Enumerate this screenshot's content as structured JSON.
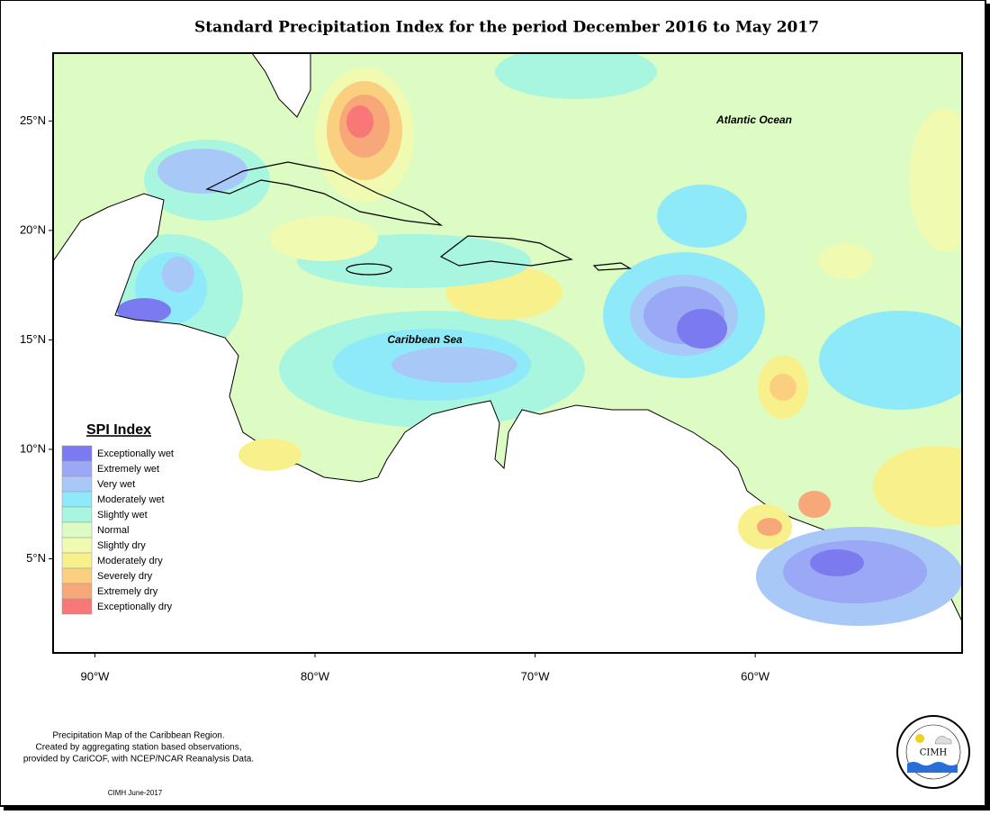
{
  "title": "Standard Precipitation Index for the period December 2016 to May 2017",
  "map": {
    "lon_range": [
      -91.9,
      -50.6
    ],
    "lat_range": [
      0.7,
      28.1
    ],
    "lat_ticks": [
      {
        "value": 25,
        "label": "25°N"
      },
      {
        "value": 20,
        "label": "20°N"
      },
      {
        "value": 15,
        "label": "15°N"
      },
      {
        "value": 10,
        "label": "10°N"
      },
      {
        "value": 5,
        "label": "5°N"
      }
    ],
    "lon_ticks": [
      {
        "value": -90,
        "label": "90°W"
      },
      {
        "value": -80,
        "label": "80°W"
      },
      {
        "value": -70,
        "label": "70°W"
      },
      {
        "value": -60,
        "label": "60°W"
      }
    ],
    "labels": [
      "Atlantic Ocean",
      "Caribbean Sea"
    ]
  },
  "legend": {
    "title": "SPI Index",
    "items": [
      {
        "label": "Exceptionally wet",
        "color": "#7b7bef"
      },
      {
        "label": "Extremely wet",
        "color": "#9aa8f5"
      },
      {
        "label": "Very wet",
        "color": "#a8c8f8"
      },
      {
        "label": "Moderately wet",
        "color": "#8eeaf8"
      },
      {
        "label": "Slightly wet",
        "color": "#a8f5e0"
      },
      {
        "label": "Normal",
        "color": "#dcfcc4"
      },
      {
        "label": "Slightly dry",
        "color": "#f0fab0"
      },
      {
        "label": "Moderately dry",
        "color": "#f8f08a"
      },
      {
        "label": "Severely dry",
        "color": "#fad080"
      },
      {
        "label": "Extremely dry",
        "color": "#f8a878"
      },
      {
        "label": "Exceptionally dry",
        "color": "#f87878"
      }
    ]
  },
  "footer": {
    "lines": [
      "Precipitation Map of the Caribbean Region.",
      "Created by aggregating station based observations,",
      "provided by CariCOF, with NCEP/NCAR Reanalysis Data."
    ],
    "date": "CIMH June-2017"
  },
  "logo": "CIMH"
}
